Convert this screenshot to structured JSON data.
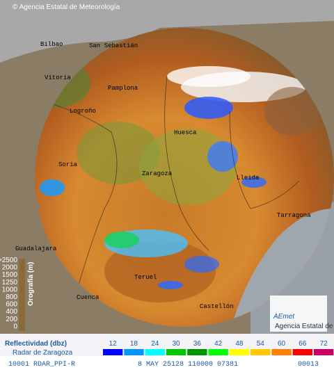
{
  "header": {
    "copyright": "© Agencia Estatal de Meteorología"
  },
  "cities": [
    "Bilbao",
    "San Sebastián",
    "Vitoria",
    "Pamplona",
    "Logroño",
    "Huesca",
    "Soria",
    "Zaragoza",
    "Lleida",
    "Tarragona",
    "Guadalajara",
    "Teruel",
    "Cuenca",
    "Castellón"
  ],
  "altitude_legend": {
    "title": "Orografía (m)",
    "labels": [
      ">2500",
      "2000",
      "1500",
      "1250",
      "1000",
      "800",
      "600",
      "400",
      "200",
      "0"
    ]
  },
  "logo": {
    "name": "AEmet",
    "subtitle": "Agencia Estatal de Meteorología"
  },
  "reflectivity_legend": {
    "title": "Reflectividad (dbz)",
    "radar": "Radar de Zaragoza",
    "values": [
      12,
      18,
      24,
      30,
      36,
      42,
      48,
      54,
      60,
      66,
      72
    ],
    "colors": [
      "#0000ff",
      "#0096ff",
      "#00ffff",
      "#00c800",
      "#009600",
      "#00ff00",
      "#ffff00",
      "#ffc800",
      "#ff8000",
      "#ff0000",
      "#c80064"
    ]
  },
  "footer": {
    "product": "10001 RDAR_PPI-R",
    "date": "8 MAY 25128 110000 07381",
    "code": "00013"
  }
}
